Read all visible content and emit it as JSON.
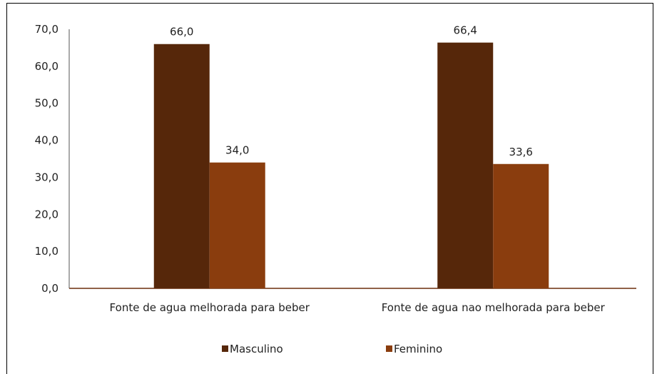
{
  "chart_data": {
    "type": "bar",
    "categories": [
      "Fonte de agua melhorada para beber",
      "Fonte de agua nao melhorada para beber"
    ],
    "series": [
      {
        "name": "Masculino",
        "values": [
          66.0,
          66.4
        ],
        "labels": [
          "66,0",
          "66,4"
        ],
        "color": "#56270a"
      },
      {
        "name": "Feminino",
        "values": [
          34.0,
          33.6
        ],
        "labels": [
          "34,0",
          "33,6"
        ],
        "color": "#8a3d0e"
      }
    ],
    "y_ticks": [
      {
        "value": 0,
        "label": "0,0"
      },
      {
        "value": 10,
        "label": "10,0"
      },
      {
        "value": 20,
        "label": "20,0"
      },
      {
        "value": 30,
        "label": "30,0"
      },
      {
        "value": 40,
        "label": "40,0"
      },
      {
        "value": 50,
        "label": "50,0"
      },
      {
        "value": 60,
        "label": "60,0"
      },
      {
        "value": 70,
        "label": "70,0"
      }
    ],
    "ylim": [
      0,
      70
    ],
    "grid": false,
    "legend_position": "bottom",
    "title": "",
    "xlabel": "",
    "ylabel": ""
  }
}
